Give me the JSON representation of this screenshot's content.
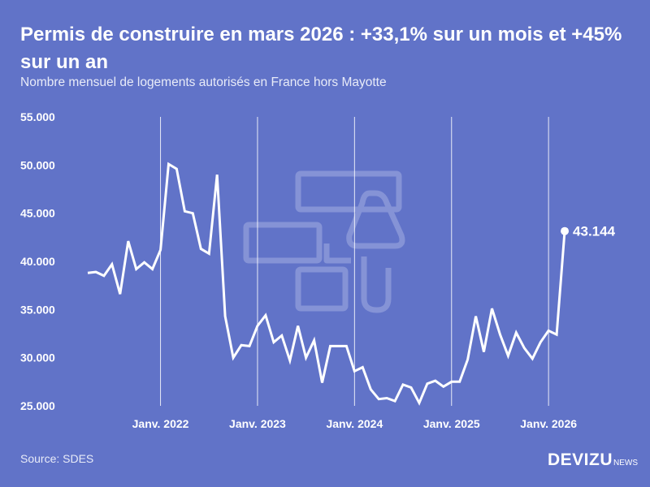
{
  "title": "Permis de construire en mars 2026 : +33,1% sur un mois et +45% sur un an",
  "subtitle": "Nombre mensuel de logements autorisés en France hors Mayotte",
  "source": "Source: SDES",
  "logo": {
    "brand": "DEVIZU",
    "suffix": "NEWS"
  },
  "colors": {
    "background": "#6173c8",
    "line": "#ffffff",
    "watermark_icon": "#8593d6"
  },
  "chart_data": {
    "type": "line",
    "title": "Permis de construire en mars 2026 : +33,1% sur un mois et +45% sur un an",
    "subtitle": "Nombre mensuel de logements autorisés en France hors Mayotte",
    "xlabel": "",
    "ylabel": "",
    "ylim": [
      25000,
      55000
    ],
    "y_ticks": [
      {
        "value": 25000,
        "label": "25.000"
      },
      {
        "value": 30000,
        "label": "30.000"
      },
      {
        "value": 35000,
        "label": "35.000"
      },
      {
        "value": 40000,
        "label": "40.000"
      },
      {
        "value": 45000,
        "label": "45.000"
      },
      {
        "value": 50000,
        "label": "50.000"
      },
      {
        "value": 55000,
        "label": "55.000"
      }
    ],
    "x_ticks": [
      {
        "value": "2022-01",
        "label": "Janv. 2022"
      },
      {
        "value": "2023-01",
        "label": "Janv. 2023"
      },
      {
        "value": "2024-01",
        "label": "Janv. 2024"
      },
      {
        "value": "2025-01",
        "label": "Janv. 2025"
      },
      {
        "value": "2026-01",
        "label": "Janv. 2026"
      }
    ],
    "grid": "vertical lines at January",
    "x": [
      "2021-04",
      "2021-05",
      "2021-06",
      "2021-07",
      "2021-08",
      "2021-09",
      "2021-10",
      "2021-11",
      "2021-12",
      "2022-01",
      "2022-02",
      "2022-03",
      "2022-04",
      "2022-05",
      "2022-06",
      "2022-07",
      "2022-08",
      "2022-09",
      "2022-10",
      "2022-11",
      "2022-12",
      "2023-01",
      "2023-02",
      "2023-03",
      "2023-04",
      "2023-05",
      "2023-06",
      "2023-07",
      "2023-08",
      "2023-09",
      "2023-10",
      "2023-11",
      "2023-12",
      "2024-01",
      "2024-02",
      "2024-03",
      "2024-04",
      "2024-05",
      "2024-06",
      "2024-07",
      "2024-08",
      "2024-09",
      "2024-10",
      "2024-11",
      "2024-12",
      "2025-01",
      "2025-02",
      "2025-03",
      "2025-04",
      "2025-05",
      "2025-06",
      "2025-07",
      "2025-08",
      "2025-09",
      "2025-10",
      "2025-11",
      "2025-12",
      "2026-01",
      "2026-02",
      "2026-03"
    ],
    "series": [
      {
        "values": [
          38800,
          38900,
          38500,
          39700,
          36600,
          42100,
          39200,
          39900,
          39200,
          41200,
          50100,
          49600,
          45200,
          45000,
          41300,
          40800,
          49000,
          34300,
          30000,
          31300,
          31200,
          33300,
          34400,
          31600,
          32300,
          29700,
          33300,
          30000,
          31800,
          27400,
          31200,
          31200,
          31200,
          28600,
          29000,
          26700,
          25700,
          25800,
          25500,
          27200,
          26900,
          25300,
          27300,
          27600,
          27000,
          27500,
          27500,
          29800,
          34300,
          30600,
          35100,
          32400,
          30200,
          32600,
          31000,
          29900,
          31600,
          32800,
          32400,
          43144
        ]
      }
    ],
    "annotations": [
      {
        "x": "2026-03",
        "value": 43144,
        "label": "43.144"
      }
    ]
  }
}
